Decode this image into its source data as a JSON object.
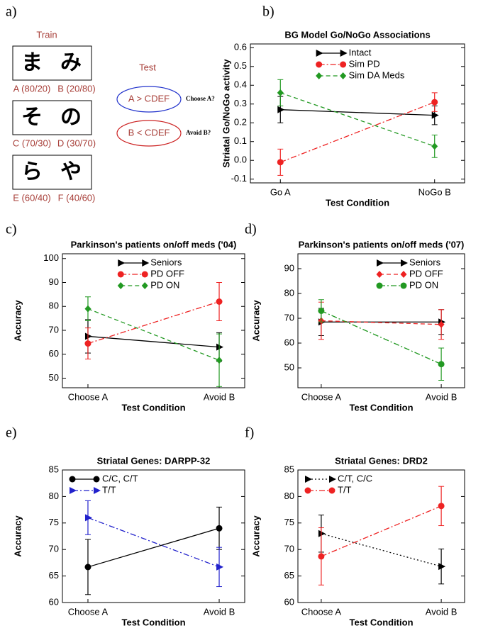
{
  "diagram": {
    "label": "a)",
    "train": "Train",
    "test": "Test",
    "pairs": [
      {
        "chars": [
          "ま",
          "み"
        ],
        "labels": [
          "A (80/20)",
          "B (20/80)"
        ]
      },
      {
        "chars": [
          "そ",
          "の"
        ],
        "labels": [
          "C (70/30)",
          "D (30/70)"
        ]
      },
      {
        "chars": [
          "ら",
          "や"
        ],
        "labels": [
          "E (60/40)",
          "F (40/60)"
        ]
      }
    ],
    "tests": [
      {
        "rule": "A > CDEF",
        "question": "Choose A?",
        "color": "#2233cc"
      },
      {
        "rule": "B < CDEF",
        "question": "Avoid B?",
        "color": "#cc2222"
      }
    ]
  },
  "chart_data": [
    {
      "type": "line",
      "label": "b)",
      "title": "BG Model Go/NoGo Associations",
      "xlabel": "Test Condition",
      "ylabel": "Striatal Go/NoGo activity",
      "categories": [
        "Go A",
        "NoGo B"
      ],
      "ylim": [
        -0.12,
        0.62
      ],
      "yticks": [
        -0.1,
        {
          "value": 0,
          "label": "0.0"
        },
        0.1,
        0.2,
        0.3,
        0.4,
        0.5,
        0.6
      ],
      "legend": "upper center",
      "series": [
        {
          "name": "Intact",
          "color": "#000000",
          "linestyle": "solid",
          "marker": "triangle",
          "values": [
            0.27,
            0.24
          ],
          "errors": [
            0.07,
            0.05
          ]
        },
        {
          "name": "Sim PD",
          "color": "#ee2222",
          "linestyle": "dashdot",
          "marker": "circle",
          "values": [
            -0.01,
            0.31
          ],
          "errors": [
            0.07,
            0.05
          ]
        },
        {
          "name": "Sim DA Meds",
          "color": "#229922",
          "linestyle": "dashed",
          "marker": "diamond",
          "values": [
            0.36,
            0.075
          ],
          "errors": [
            0.07,
            0.06
          ]
        }
      ]
    },
    {
      "type": "line",
      "label": "c)",
      "title": "Parkinson's patients on/off meds ('04)",
      "xlabel": "Test Condition",
      "ylabel": "Accuracy",
      "categories": [
        "Choose A",
        "Avoid B"
      ],
      "ylim": [
        46,
        102
      ],
      "yticks": [
        50,
        60,
        70,
        80,
        90,
        100
      ],
      "legend": "upper center",
      "series": [
        {
          "name": "Seniors",
          "color": "#000000",
          "linestyle": "solid",
          "marker": "triangle",
          "values": [
            67.5,
            63
          ],
          "errors": [
            7,
            6
          ]
        },
        {
          "name": "PD OFF",
          "color": "#ee2222",
          "linestyle": "dashdot",
          "marker": "circle",
          "values": [
            64.5,
            82
          ],
          "errors": [
            6.5,
            8
          ]
        },
        {
          "name": "PD ON",
          "color": "#229922",
          "linestyle": "dashed",
          "marker": "diamond",
          "values": [
            79,
            57.5
          ],
          "errors": [
            5,
            11
          ]
        }
      ]
    },
    {
      "type": "line",
      "label": "d)",
      "title": "Parkinson's patients on/off meds ('07)",
      "xlabel": "Test Condition",
      "ylabel": "Accuracy",
      "categories": [
        "Choose A",
        "Avoid B"
      ],
      "ylim": [
        42,
        96
      ],
      "yticks": [
        50,
        60,
        70,
        80,
        90
      ],
      "legend": "upper right",
      "series": [
        {
          "name": "Seniors",
          "color": "#000000",
          "linestyle": "solid",
          "marker": "triangle",
          "values": [
            68.5,
            68.5
          ],
          "errors": [
            5.5,
            5
          ]
        },
        {
          "name": "PD OFF",
          "color": "#ee2222",
          "linestyle": "dashed",
          "marker": "diamond",
          "values": [
            69,
            67.5
          ],
          "errors": [
            7.5,
            6
          ]
        },
        {
          "name": "PD ON",
          "color": "#229922",
          "linestyle": "dashdot",
          "marker": "circle",
          "values": [
            73,
            51.5
          ],
          "errors": [
            4.5,
            6.5
          ]
        }
      ]
    },
    {
      "type": "line",
      "label": "e)",
      "title": "Striatal Genes: DARPP-32",
      "xlabel": "Test Condition",
      "ylabel": "Accuracy",
      "categories": [
        "Choose A",
        "Avoid B"
      ],
      "ylim": [
        60,
        85
      ],
      "yticks": [
        60,
        65,
        70,
        75,
        80,
        85
      ],
      "legend": "upper left",
      "series": [
        {
          "name": "C/C, C/T",
          "color": "#000000",
          "linestyle": "solid",
          "marker": "circle",
          "values": [
            66.7,
            74
          ],
          "errors": [
            5.2,
            4
          ]
        },
        {
          "name": "T/T",
          "color": "#2222cc",
          "linestyle": "dashdot",
          "marker": "triangle",
          "values": [
            76,
            66.7
          ],
          "errors": [
            3.2,
            3.7
          ]
        }
      ]
    },
    {
      "type": "line",
      "label": "f)",
      "title": "Striatal Genes: DRD2",
      "xlabel": "Test Condition",
      "ylabel": "Accuracy",
      "categories": [
        "Choose A",
        "Avoid B"
      ],
      "ylim": [
        60,
        85
      ],
      "yticks": [
        60,
        65,
        70,
        75,
        80,
        85
      ],
      "legend": "upper left",
      "series": [
        {
          "name": "C/T, C/C",
          "color": "#000000",
          "linestyle": "dotted",
          "marker": "triangle",
          "values": [
            73,
            66.8
          ],
          "errors": [
            3.5,
            3.3
          ]
        },
        {
          "name": "T/T",
          "color": "#ee2222",
          "linestyle": "dashdot",
          "marker": "circle",
          "values": [
            68.7,
            78.2
          ],
          "errors": [
            5.4,
            3.7
          ]
        }
      ]
    }
  ]
}
